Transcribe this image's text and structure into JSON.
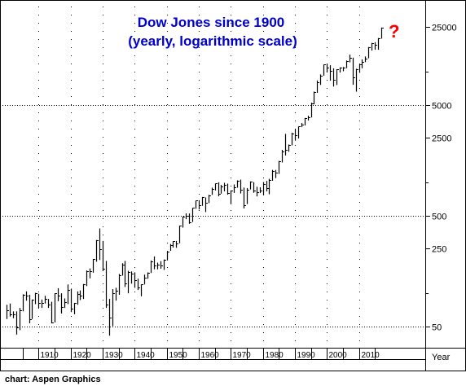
{
  "chart_data": {
    "type": "bar",
    "subtype": "ohlc-yearly",
    "title_lines": [
      "Dow Jones since 1900",
      "(yearly, logarithmic scale)"
    ],
    "xlabel": "Year",
    "ylabel": "",
    "y_scale": "log",
    "ylim": [
      35,
      40000
    ],
    "xlim": [
      1900,
      2018
    ],
    "y_ticks": [
      50,
      250,
      500,
      2500,
      5000,
      25000
    ],
    "y_ticks_dotted_grid": [
      50,
      500,
      5000
    ],
    "x_ticks": [
      1910,
      1920,
      1930,
      1940,
      1950,
      1960,
      1970,
      1980,
      1990,
      2000,
      2010
    ],
    "grid": true,
    "annotation": "?",
    "credit": "chart: Aspen Graphics",
    "colors": {
      "bars": "#000000",
      "title": "#0000cc",
      "annotation": "#ff0000",
      "grid": "#000000"
    },
    "series": [
      {
        "bars": [
          {
            "x": 1900,
            "h": 78,
            "l": 58,
            "c": 70
          },
          {
            "x": 1901,
            "h": 80,
            "l": 61,
            "c": 64
          },
          {
            "x": 1902,
            "h": 68,
            "l": 59,
            "c": 64
          },
          {
            "x": 1903,
            "h": 68,
            "l": 42,
            "c": 49
          },
          {
            "x": 1904,
            "h": 73,
            "l": 46,
            "c": 69
          },
          {
            "x": 1905,
            "h": 97,
            "l": 68,
            "c": 96
          },
          {
            "x": 1906,
            "h": 103,
            "l": 85,
            "c": 94
          },
          {
            "x": 1907,
            "h": 96,
            "l": 53,
            "c": 58
          },
          {
            "x": 1908,
            "h": 87,
            "l": 58,
            "c": 86
          },
          {
            "x": 1909,
            "h": 100,
            "l": 79,
            "c": 99
          },
          {
            "x": 1910,
            "h": 98,
            "l": 73,
            "c": 81
          },
          {
            "x": 1911,
            "h": 87,
            "l": 73,
            "c": 81
          },
          {
            "x": 1912,
            "h": 94,
            "l": 80,
            "c": 88
          },
          {
            "x": 1913,
            "h": 88,
            "l": 73,
            "c": 78
          },
          {
            "x": 1914,
            "h": 83,
            "l": 53,
            "c": 54
          },
          {
            "x": 1915,
            "h": 99,
            "l": 54,
            "c": 99
          },
          {
            "x": 1916,
            "h": 110,
            "l": 84,
            "c": 95
          },
          {
            "x": 1917,
            "h": 99,
            "l": 65,
            "c": 74
          },
          {
            "x": 1918,
            "h": 89,
            "l": 73,
            "c": 82
          },
          {
            "x": 1919,
            "h": 119,
            "l": 79,
            "c": 107
          },
          {
            "x": 1920,
            "h": 109,
            "l": 67,
            "c": 72
          },
          {
            "x": 1921,
            "h": 81,
            "l": 64,
            "c": 81
          },
          {
            "x": 1922,
            "h": 103,
            "l": 78,
            "c": 98
          },
          {
            "x": 1923,
            "h": 105,
            "l": 86,
            "c": 95
          },
          {
            "x": 1924,
            "h": 120,
            "l": 88,
            "c": 120
          },
          {
            "x": 1925,
            "h": 159,
            "l": 115,
            "c": 156
          },
          {
            "x": 1926,
            "h": 166,
            "l": 135,
            "c": 157
          },
          {
            "x": 1927,
            "h": 202,
            "l": 152,
            "c": 202
          },
          {
            "x": 1928,
            "h": 300,
            "l": 191,
            "c": 300
          },
          {
            "x": 1929,
            "h": 381,
            "l": 198,
            "c": 248
          },
          {
            "x": 1930,
            "h": 294,
            "l": 157,
            "c": 165
          },
          {
            "x": 1931,
            "h": 194,
            "l": 73,
            "c": 78
          },
          {
            "x": 1932,
            "h": 88,
            "l": 41,
            "c": 60
          },
          {
            "x": 1933,
            "h": 108,
            "l": 50,
            "c": 100
          },
          {
            "x": 1934,
            "h": 111,
            "l": 85,
            "c": 104
          },
          {
            "x": 1935,
            "h": 148,
            "l": 96,
            "c": 144
          },
          {
            "x": 1936,
            "h": 185,
            "l": 143,
            "c": 180
          },
          {
            "x": 1937,
            "h": 194,
            "l": 113,
            "c": 121
          },
          {
            "x": 1938,
            "h": 158,
            "l": 99,
            "c": 155
          },
          {
            "x": 1939,
            "h": 156,
            "l": 121,
            "c": 150
          },
          {
            "x": 1940,
            "h": 153,
            "l": 111,
            "c": 131
          },
          {
            "x": 1941,
            "h": 134,
            "l": 106,
            "c": 111
          },
          {
            "x": 1942,
            "h": 119,
            "l": 93,
            "c": 119
          },
          {
            "x": 1943,
            "h": 146,
            "l": 119,
            "c": 136
          },
          {
            "x": 1944,
            "h": 153,
            "l": 134,
            "c": 152
          },
          {
            "x": 1945,
            "h": 196,
            "l": 151,
            "c": 193
          },
          {
            "x": 1946,
            "h": 213,
            "l": 163,
            "c": 177
          },
          {
            "x": 1947,
            "h": 187,
            "l": 163,
            "c": 181
          },
          {
            "x": 1948,
            "h": 193,
            "l": 165,
            "c": 177
          },
          {
            "x": 1949,
            "h": 200,
            "l": 161,
            "c": 200
          },
          {
            "x": 1950,
            "h": 235,
            "l": 196,
            "c": 235
          },
          {
            "x": 1951,
            "h": 276,
            "l": 239,
            "c": 269
          },
          {
            "x": 1952,
            "h": 292,
            "l": 256,
            "c": 292
          },
          {
            "x": 1953,
            "h": 294,
            "l": 255,
            "c": 281
          },
          {
            "x": 1954,
            "h": 404,
            "l": 280,
            "c": 404
          },
          {
            "x": 1955,
            "h": 488,
            "l": 388,
            "c": 488
          },
          {
            "x": 1956,
            "h": 521,
            "l": 462,
            "c": 500
          },
          {
            "x": 1957,
            "h": 520,
            "l": 420,
            "c": 436
          },
          {
            "x": 1958,
            "h": 583,
            "l": 436,
            "c": 583
          },
          {
            "x": 1959,
            "h": 679,
            "l": 574,
            "c": 679
          },
          {
            "x": 1960,
            "h": 685,
            "l": 566,
            "c": 616
          },
          {
            "x": 1961,
            "h": 734,
            "l": 610,
            "c": 731
          },
          {
            "x": 1962,
            "h": 726,
            "l": 536,
            "c": 652
          },
          {
            "x": 1963,
            "h": 767,
            "l": 646,
            "c": 763
          },
          {
            "x": 1964,
            "h": 891,
            "l": 766,
            "c": 874
          },
          {
            "x": 1965,
            "h": 969,
            "l": 840,
            "c": 969
          },
          {
            "x": 1966,
            "h": 995,
            "l": 744,
            "c": 786
          },
          {
            "x": 1967,
            "h": 943,
            "l": 786,
            "c": 905
          },
          {
            "x": 1968,
            "h": 985,
            "l": 825,
            "c": 943
          },
          {
            "x": 1969,
            "h": 968,
            "l": 769,
            "c": 800
          },
          {
            "x": 1970,
            "h": 842,
            "l": 631,
            "c": 839
          },
          {
            "x": 1971,
            "h": 951,
            "l": 798,
            "c": 890
          },
          {
            "x": 1972,
            "h": 1036,
            "l": 889,
            "c": 1020
          },
          {
            "x": 1973,
            "h": 1052,
            "l": 788,
            "c": 850
          },
          {
            "x": 1974,
            "h": 892,
            "l": 577,
            "c": 616
          },
          {
            "x": 1975,
            "h": 882,
            "l": 632,
            "c": 852
          },
          {
            "x": 1976,
            "h": 1014,
            "l": 858,
            "c": 1004
          },
          {
            "x": 1977,
            "h": 999,
            "l": 800,
            "c": 831
          },
          {
            "x": 1978,
            "h": 907,
            "l": 742,
            "c": 805
          },
          {
            "x": 1979,
            "h": 897,
            "l": 796,
            "c": 838
          },
          {
            "x": 1980,
            "h": 1000,
            "l": 759,
            "c": 963
          },
          {
            "x": 1981,
            "h": 1024,
            "l": 824,
            "c": 875
          },
          {
            "x": 1982,
            "h": 1070,
            "l": 776,
            "c": 1046
          },
          {
            "x": 1983,
            "h": 1287,
            "l": 1027,
            "c": 1258
          },
          {
            "x": 1984,
            "h": 1286,
            "l": 1086,
            "c": 1211
          },
          {
            "x": 1985,
            "h": 1553,
            "l": 1184,
            "c": 1546
          },
          {
            "x": 1986,
            "h": 1955,
            "l": 1502,
            "c": 1895
          },
          {
            "x": 1987,
            "h": 2722,
            "l": 1738,
            "c": 1938
          },
          {
            "x": 1988,
            "h": 2183,
            "l": 1879,
            "c": 2168
          },
          {
            "x": 1989,
            "h": 2791,
            "l": 2144,
            "c": 2753
          },
          {
            "x": 1990,
            "h": 2999,
            "l": 2365,
            "c": 2633
          },
          {
            "x": 1991,
            "h": 3168,
            "l": 2470,
            "c": 3168
          },
          {
            "x": 1992,
            "h": 3413,
            "l": 3136,
            "c": 3301
          },
          {
            "x": 1993,
            "h": 3794,
            "l": 3241,
            "c": 3754
          },
          {
            "x": 1994,
            "h": 3978,
            "l": 3593,
            "c": 3834
          },
          {
            "x": 1995,
            "h": 5216,
            "l": 3832,
            "c": 5117
          },
          {
            "x": 1996,
            "h": 6560,
            "l": 5032,
            "c": 6448
          },
          {
            "x": 1997,
            "h": 8259,
            "l": 6391,
            "c": 7908
          },
          {
            "x": 1998,
            "h": 9374,
            "l": 7539,
            "c": 9181
          },
          {
            "x": 1999,
            "h": 11497,
            "l": 9120,
            "c": 11497
          },
          {
            "x": 2000,
            "h": 11723,
            "l": 9796,
            "c": 10787
          },
          {
            "x": 2001,
            "h": 11337,
            "l": 8236,
            "c": 10021
          },
          {
            "x": 2002,
            "h": 10635,
            "l": 7286,
            "c": 8342
          },
          {
            "x": 2003,
            "h": 10454,
            "l": 7524,
            "c": 10454
          },
          {
            "x": 2004,
            "h": 10855,
            "l": 9750,
            "c": 10783
          },
          {
            "x": 2005,
            "h": 10940,
            "l": 10012,
            "c": 10718
          },
          {
            "x": 2006,
            "h": 12510,
            "l": 10667,
            "c": 12463
          },
          {
            "x": 2007,
            "h": 14164,
            "l": 12050,
            "c": 13265
          },
          {
            "x": 2008,
            "h": 13279,
            "l": 7552,
            "c": 8776
          },
          {
            "x": 2009,
            "h": 10548,
            "l": 6547,
            "c": 10428
          },
          {
            "x": 2010,
            "h": 11585,
            "l": 9686,
            "c": 11578
          },
          {
            "x": 2011,
            "h": 12810,
            "l": 10655,
            "c": 12218
          },
          {
            "x": 2012,
            "h": 13610,
            "l": 12101,
            "c": 13104
          },
          {
            "x": 2013,
            "h": 16576,
            "l": 13104,
            "c": 16576
          },
          {
            "x": 2014,
            "h": 18053,
            "l": 15372,
            "c": 17823
          },
          {
            "x": 2015,
            "h": 18312,
            "l": 15666,
            "c": 17425
          },
          {
            "x": 2016,
            "h": 19975,
            "l": 15660,
            "c": 19763
          },
          {
            "x": 2017,
            "h": 24838,
            "l": 19732,
            "c": 24719
          }
        ]
      }
    ]
  }
}
